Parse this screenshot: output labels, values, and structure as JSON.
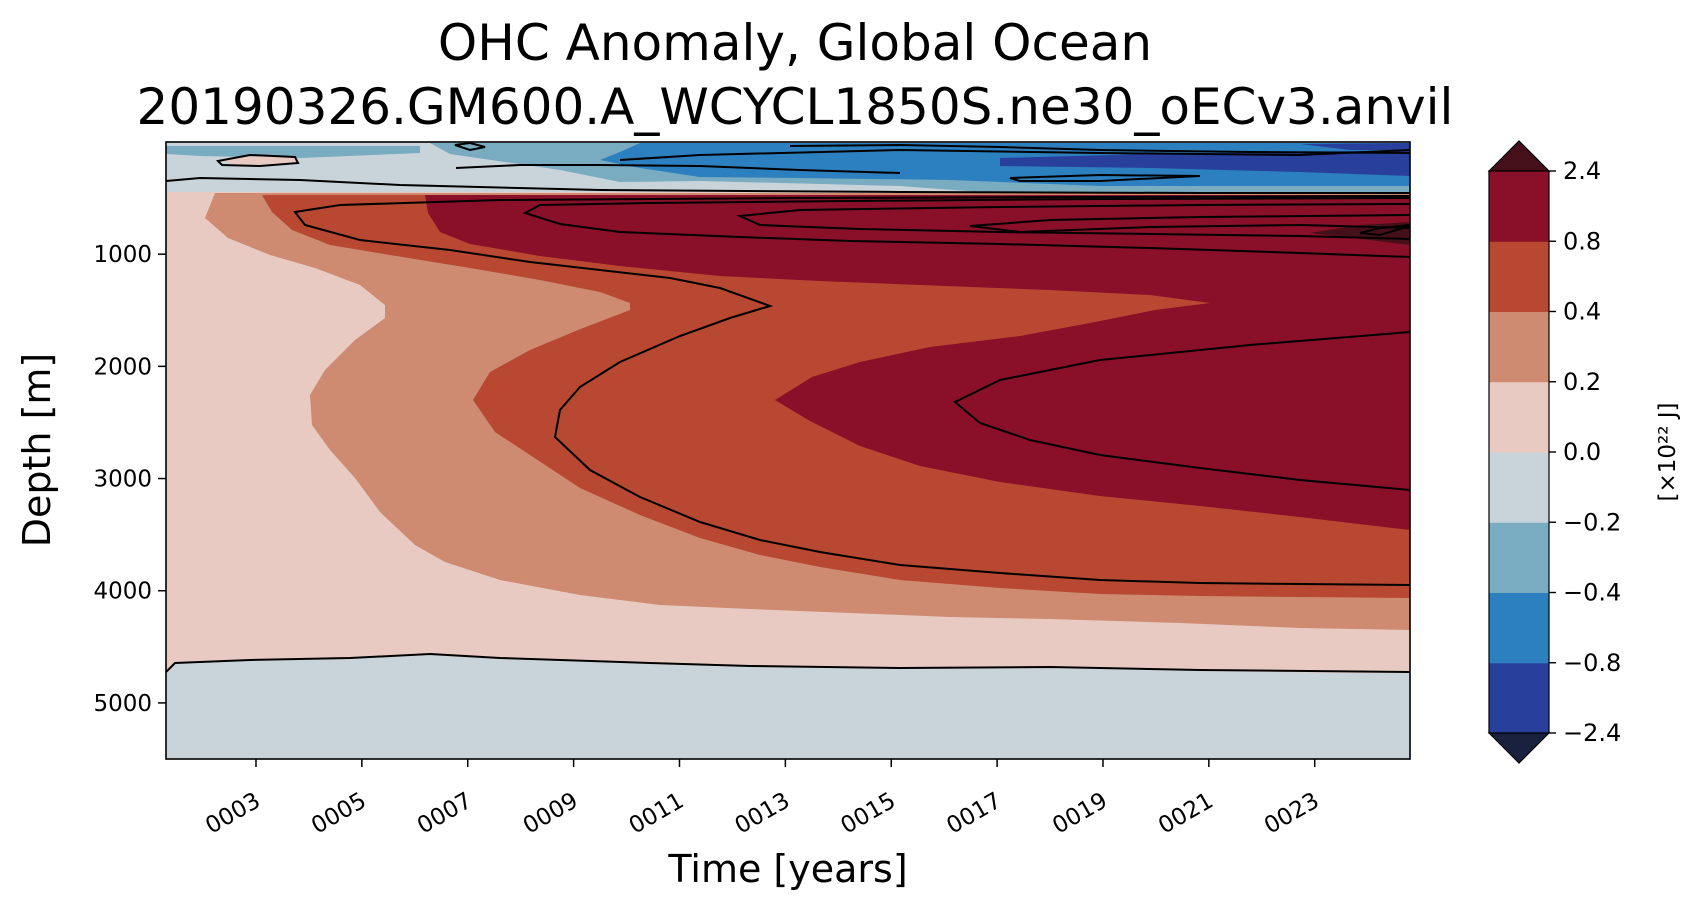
{
  "chart_data": {
    "type": "heatmap",
    "plot_style": "filled contour (Hovmoller)",
    "title": "OHC Anomaly, Global Ocean",
    "subtitle": "20190326.GM600.A_WCYCL1850S.ne30_oECv3.anvil",
    "xlabel": "Time [years]",
    "ylabel": "Depth [m]",
    "xlim": [
      1.3,
      24.8
    ],
    "ylim": [
      5500,
      0
    ],
    "y_inverted": true,
    "x_ticks": [
      3,
      5,
      7,
      9,
      11,
      13,
      15,
      17,
      19,
      21,
      23
    ],
    "x_tick_labels": [
      "0003",
      "0005",
      "0007",
      "0009",
      "0011",
      "0013",
      "0015",
      "0017",
      "0019",
      "0021",
      "0023"
    ],
    "y_ticks": [
      1000,
      2000,
      3000,
      4000,
      5000
    ],
    "y_tick_labels": [
      "1000",
      "2000",
      "3000",
      "4000",
      "5000"
    ],
    "levels": [
      -2.4,
      -0.8,
      -0.4,
      -0.2,
      0.0,
      0.2,
      0.4,
      0.8,
      2.4
    ],
    "colorbar": {
      "label": "[×10²² J]",
      "tick_labels": [
        "2.4",
        "0.8",
        "0.4",
        "0.2",
        "0.0",
        "−0.2",
        "−0.4",
        "−0.8",
        "−2.4"
      ],
      "extend": "both",
      "colors": [
        "#28409b",
        "#2c80c0",
        "#79abc1",
        "#c9d3da",
        "#e8cac3",
        "#ce8b71",
        "#b84831",
        "#8a0f29"
      ],
      "over_color": "#46101a",
      "under_color": "#19213f"
    },
    "contour_lines": true
  }
}
